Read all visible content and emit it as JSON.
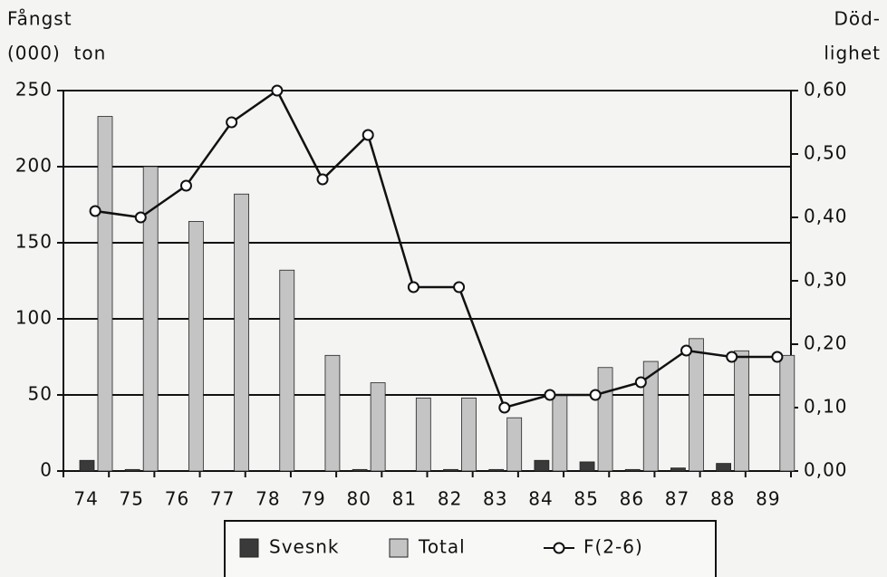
{
  "chart_data": {
    "type": "bar",
    "ylabel": [
      "Fångst",
      "(000)  ton"
    ],
    "y2label": [
      "Död-",
      "lighet"
    ],
    "categories": [
      "74",
      "75",
      "76",
      "77",
      "78",
      "79",
      "80",
      "81",
      "82",
      "83",
      "84",
      "85",
      "86",
      "87",
      "88",
      "89"
    ],
    "series": [
      {
        "name": "Svesnk",
        "type": "bar",
        "color": "#3a3a3a",
        "values": [
          7,
          1,
          0,
          0,
          0,
          0,
          1,
          0,
          1,
          1,
          7,
          6,
          1,
          2,
          5,
          0
        ]
      },
      {
        "name": "Total",
        "type": "bar",
        "color": "#c4c4c4",
        "values": [
          233,
          200,
          164,
          182,
          132,
          76,
          58,
          48,
          48,
          35,
          50,
          68,
          72,
          87,
          79,
          76
        ]
      },
      {
        "name": "F(2-6)",
        "type": "line",
        "axis": "y2",
        "color": "#111111",
        "values": [
          0.41,
          0.4,
          0.45,
          0.55,
          0.6,
          0.46,
          0.53,
          0.29,
          0.29,
          0.1,
          0.12,
          0.12,
          0.14,
          0.19,
          0.18,
          0.18
        ]
      }
    ],
    "ylim": [
      0,
      250
    ],
    "yticks": [
      0,
      50,
      100,
      150,
      200,
      250
    ],
    "y2lim": [
      0,
      0.6
    ],
    "y2ticks": [
      {
        "value": 0,
        "label": "0,00"
      },
      {
        "value": 0.1,
        "label": "0,10"
      },
      {
        "value": 0.2,
        "label": "0,20"
      },
      {
        "value": 0.3,
        "label": "0,30"
      },
      {
        "value": 0.4,
        "label": "0,40"
      },
      {
        "value": 0.5,
        "label": "0,50"
      },
      {
        "value": 0.6,
        "label": "0,60"
      }
    ],
    "grid": true,
    "legend": "bottom"
  }
}
